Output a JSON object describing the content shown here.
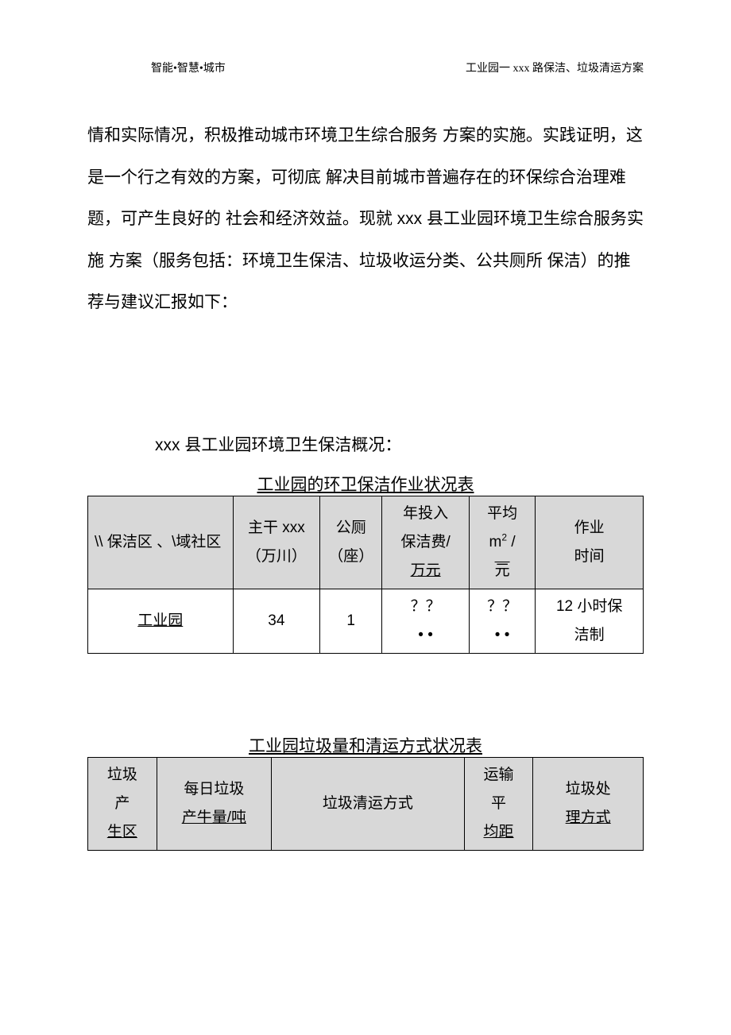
{
  "header": {
    "left": "智能•智慧•城市",
    "right": "工业园一 xxx 路保洁、垃圾清运方案"
  },
  "bodyParagraph": "情和实际情况，积极推动城市环境卫生综合服务 方案的实施。实践证明，这是一个行之有效的方案，可彻底 解决目前城市普遍存在的环保综合治理难题，可产生良好的 社会和经济效益。现就 xxx 县工业园环境卫生综合服务实施 方案（服务包括：环境卫生保洁、垃圾收运分类、公共厕所 保洁）的推荐与建议汇报如下：",
  "sectionTitle": "xxx 县工业园环境卫生保洁概况：",
  "table1": {
    "title": "工业园的环卫保洁作业状况表",
    "headers": {
      "col1": "\\\\ 保洁区 、\\域社区",
      "col2_line1": "主干 xxx",
      "col2_line2": "（万川）",
      "col3_line1": "公厕",
      "col3_line2": "（座）",
      "col4_line1": "年投入",
      "col4_line2": "保洁费/",
      "col4_line3": "万元",
      "col5_line1": "平均",
      "col5_line2_prefix": "m",
      "col5_line2_sup": "2",
      "col5_line2_suffix": " /",
      "col5_line3": "元",
      "col6_line1": "作业",
      "col6_line2": "时间"
    },
    "row1": {
      "col1": "工业园",
      "col2": "34",
      "col3": "1",
      "col4_line1": "？？",
      "col4_line2": "• •",
      "col5_line1": "？？",
      "col5_line2": "• •",
      "col6_line1": "12 小时保",
      "col6_line2": "洁制"
    }
  },
  "table2": {
    "title": "工业园垃圾量和清运方式状况表",
    "headers": {
      "col1_line1": "垃圾",
      "col1_line2": "产",
      "col1_line3": "生区",
      "col2_line1": "每日垃圾",
      "col2_line2": "产牛量/吨",
      "col3": "垃圾清运方式",
      "col4_line1": "运输",
      "col4_line2": "平",
      "col4_line3": "均距",
      "col5_line1": "垃圾处",
      "col5_line2": "理方式"
    }
  }
}
